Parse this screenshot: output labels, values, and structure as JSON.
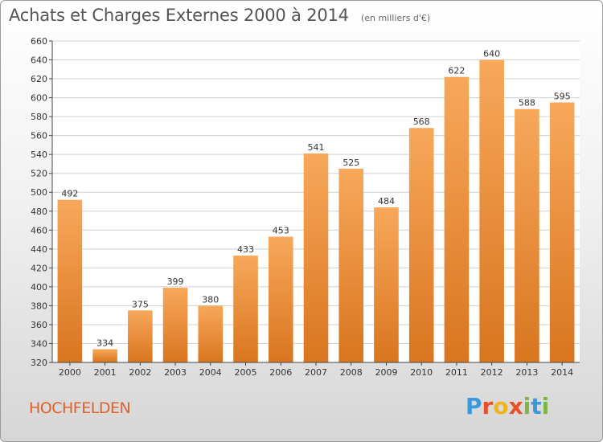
{
  "title": "Achats et Charges Externes 2000 à 2014",
  "subtitle": "(en milliers d'€)",
  "town": "HOCHFELDEN",
  "logo": {
    "text": "Proxiti",
    "letters": [
      {
        "char": "P",
        "color": "#3a9ad9"
      },
      {
        "char": "r",
        "color": "#e8502a"
      },
      {
        "char": "o",
        "color": "#f2b31b"
      },
      {
        "char": "x",
        "color": "#e8502a"
      },
      {
        "char": "i",
        "color": "#7ab648"
      },
      {
        "char": "t",
        "color": "#3a9ad9"
      },
      {
        "char": "i",
        "color": "#7ab648"
      }
    ]
  },
  "colors": {
    "bar_light": "#f7a85a",
    "bar_dark": "#d9751f",
    "grid": "#d0d0d0",
    "axis": "#444444"
  },
  "chart_data": {
    "type": "bar",
    "title": "Achats et Charges Externes 2000 à 2014",
    "subtitle": "(en milliers d'€)",
    "categories": [
      "2000",
      "2001",
      "2002",
      "2003",
      "2004",
      "2005",
      "2006",
      "2007",
      "2008",
      "2009",
      "2010",
      "2011",
      "2012",
      "2013",
      "2014"
    ],
    "values": [
      492,
      334,
      375,
      399,
      380,
      433,
      453,
      541,
      525,
      484,
      568,
      622,
      640,
      588,
      595
    ],
    "data_labels": [
      "492",
      "334",
      "375",
      "399",
      "380",
      "433",
      "453",
      "541",
      "525",
      "484",
      "568",
      "622",
      "640",
      "588",
      "595"
    ],
    "yticks": [
      "320",
      "340",
      "360",
      "380",
      "400",
      "420",
      "440",
      "460",
      "480",
      "500",
      "520",
      "540",
      "560",
      "580",
      "600",
      "620",
      "640",
      "660"
    ],
    "ylim": [
      320,
      660
    ],
    "xlabel": "",
    "ylabel": "",
    "grid": true
  }
}
